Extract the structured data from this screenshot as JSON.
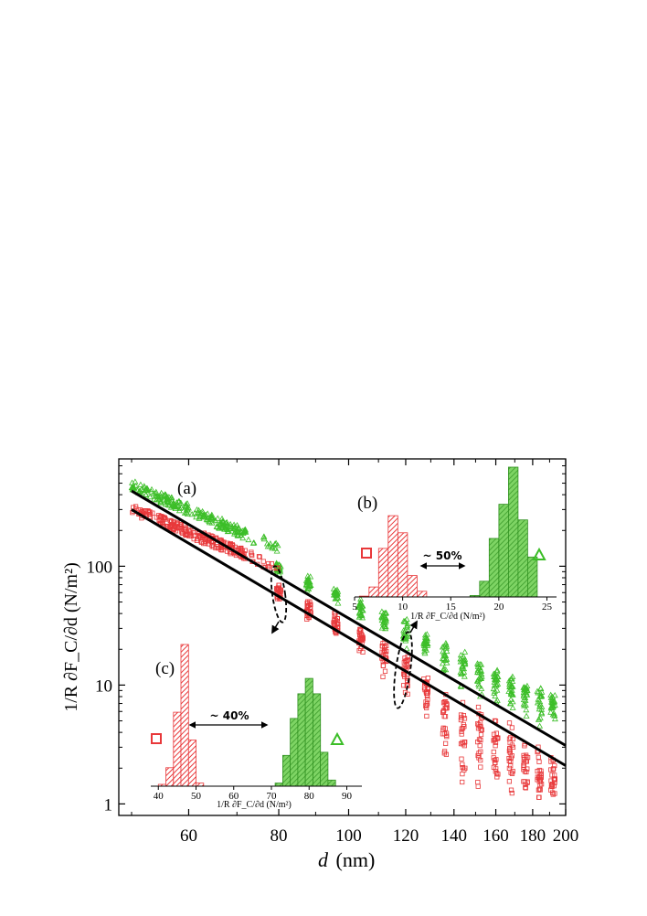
{
  "chart_data": [
    {
      "panel": "(a)",
      "type": "scatter",
      "xscale": "log",
      "yscale": "log",
      "xlabel": "d",
      "xunit": "(nm)",
      "ylabel": "1/R ∂F_C/∂d (N/m²)",
      "xlim": [
        48,
        200
      ],
      "ylim": [
        0.8,
        800
      ],
      "xticks": [
        "60",
        "80",
        "100",
        "120",
        "140",
        "160",
        "180",
        "200"
      ],
      "yticks": [
        "1",
        "10",
        "100"
      ],
      "colors": {
        "red": "#e8383a",
        "green": "#3cbe28",
        "fit": "#000000"
      },
      "series": [
        {
          "marker": "triangle",
          "color": "#3cbe28",
          "dense_region": {
            "x": [
              50,
              72
            ],
            "y_at_start": 480,
            "y_at_end": 185
          },
          "columns": [
            {
              "x": 80,
              "y_center": 98,
              "y_min": 84,
              "y_max": 112
            },
            {
              "x": 88,
              "y_center": 72,
              "y_min": 60,
              "y_max": 86
            },
            {
              "x": 96,
              "y_center": 58,
              "y_min": 46,
              "y_max": 70
            },
            {
              "x": 104,
              "y_center": 44,
              "y_min": 34,
              "y_max": 54
            },
            {
              "x": 112,
              "y_center": 36,
              "y_min": 26,
              "y_max": 46
            },
            {
              "x": 120,
              "y_center": 28,
              "y_min": 19,
              "y_max": 38
            },
            {
              "x": 128,
              "y_center": 22,
              "y_min": 14,
              "y_max": 30
            },
            {
              "x": 136,
              "y_center": 18,
              "y_min": 10,
              "y_max": 25
            },
            {
              "x": 144,
              "y_center": 15,
              "y_min": 8,
              "y_max": 21
            },
            {
              "x": 152,
              "y_center": 12.5,
              "y_min": 6.5,
              "y_max": 18
            },
            {
              "x": 160,
              "y_center": 11,
              "y_min": 5.5,
              "y_max": 15
            },
            {
              "x": 168,
              "y_center": 9.5,
              "y_min": 5,
              "y_max": 13
            },
            {
              "x": 176,
              "y_center": 8.5,
              "y_min": 4.5,
              "y_max": 12
            },
            {
              "x": 184,
              "y_center": 7.5,
              "y_min": 4,
              "y_max": 10.5
            },
            {
              "x": 192,
              "y_center": 6.8,
              "y_min": 3.8,
              "y_max": 9.5
            }
          ],
          "fit": {
            "x": [
              50,
              200
            ],
            "y": [
              430,
              3.1
            ]
          }
        },
        {
          "marker": "square",
          "color": "#e8383a",
          "dense_region": {
            "x": [
              50,
              72
            ],
            "y_at_start": 300,
            "y_at_end": 125
          },
          "columns": [
            {
              "x": 80,
              "y_center": 60,
              "y_min": 48,
              "y_max": 75
            },
            {
              "x": 88,
              "y_center": 44,
              "y_min": 32,
              "y_max": 55
            },
            {
              "x": 96,
              "y_center": 33,
              "y_min": 24,
              "y_max": 44
            },
            {
              "x": 104,
              "y_center": 25,
              "y_min": 16,
              "y_max": 34
            },
            {
              "x": 112,
              "y_center": 18,
              "y_min": 10,
              "y_max": 26
            },
            {
              "x": 120,
              "y_center": 14,
              "y_min": 6,
              "y_max": 20
            },
            {
              "x": 128,
              "y_center": 9,
              "y_min": 4,
              "y_max": 14
            },
            {
              "x": 136,
              "y_center": 6,
              "y_min": 1.5,
              "y_max": 12
            },
            {
              "x": 144,
              "y_center": 4.5,
              "y_min": 1.2,
              "y_max": 9
            },
            {
              "x": 152,
              "y_center": 3.6,
              "y_min": 1.0,
              "y_max": 7.5
            },
            {
              "x": 160,
              "y_center": 3.0,
              "y_min": 0.95,
              "y_max": 6.5
            },
            {
              "x": 168,
              "y_center": 2.5,
              "y_min": 0.9,
              "y_max": 5.5
            },
            {
              "x": 176,
              "y_center": 2.1,
              "y_min": 0.9,
              "y_max": 4.8
            },
            {
              "x": 184,
              "y_center": 1.8,
              "y_min": 0.9,
              "y_max": 4.2
            },
            {
              "x": 192,
              "y_center": 1.6,
              "y_min": 0.9,
              "y_max": 3.8
            }
          ],
          "fit": {
            "x": [
              50,
              200
            ],
            "y": [
              300,
              2.1
            ]
          }
        }
      ],
      "annotations": [
        {
          "type": "dashed-ellipse",
          "x": 80,
          "y": 65,
          "arrow_to": "(c)"
        },
        {
          "type": "dashed-ellipse",
          "x": 120,
          "y": 14,
          "arrow_to": "(b)"
        }
      ]
    },
    {
      "panel": "(b)",
      "type": "histogram",
      "xlabel": "1/R ∂F_C/∂d (N/m²)",
      "xlim": [
        5,
        26
      ],
      "xticks": [
        "5",
        "10",
        "15",
        "20",
        "25"
      ],
      "annotation": "~ 50%",
      "legend": [
        {
          "marker": "square",
          "color": "#e8383a"
        },
        {
          "marker": "triangle",
          "color": "#3cbe28"
        }
      ],
      "series": [
        {
          "color": "#e8383a",
          "pattern": "hatched",
          "bins": [
            6,
            7,
            8,
            9,
            10,
            11,
            12
          ],
          "bin_width": 1,
          "counts": [
            3,
            35,
            170,
            285,
            225,
            75,
            20
          ]
        },
        {
          "color": "#3cbe28",
          "pattern": "hatched",
          "bins": [
            17.5,
            18.5,
            19.5,
            20.5,
            21.5,
            22.5,
            23.5
          ],
          "bin_width": 1,
          "counts": [
            5,
            55,
            205,
            325,
            455,
            270,
            140
          ]
        }
      ]
    },
    {
      "panel": "(c)",
      "type": "histogram",
      "xlabel": "1/R ∂F_C/∂d (N/m²)",
      "xlim": [
        38,
        94
      ],
      "xticks": [
        "40",
        "50",
        "60",
        "70",
        "80",
        "90"
      ],
      "annotation": "~ 40%",
      "legend": [
        {
          "marker": "square",
          "color": "#e8383a"
        },
        {
          "marker": "triangle",
          "color": "#3cbe28"
        }
      ],
      "series": [
        {
          "color": "#e8383a",
          "pattern": "hatched",
          "bins": [
            41,
            43,
            45,
            47,
            49,
            51
          ],
          "bin_width": 2,
          "counts": [
            3,
            30,
            120,
            230,
            75,
            5
          ]
        },
        {
          "color": "#3cbe28",
          "pattern": "hatched",
          "bins": [
            72,
            74,
            76,
            78,
            80,
            82,
            84,
            86
          ],
          "bin_width": 2,
          "counts": [
            5,
            50,
            110,
            150,
            175,
            150,
            55,
            10
          ]
        }
      ]
    }
  ]
}
